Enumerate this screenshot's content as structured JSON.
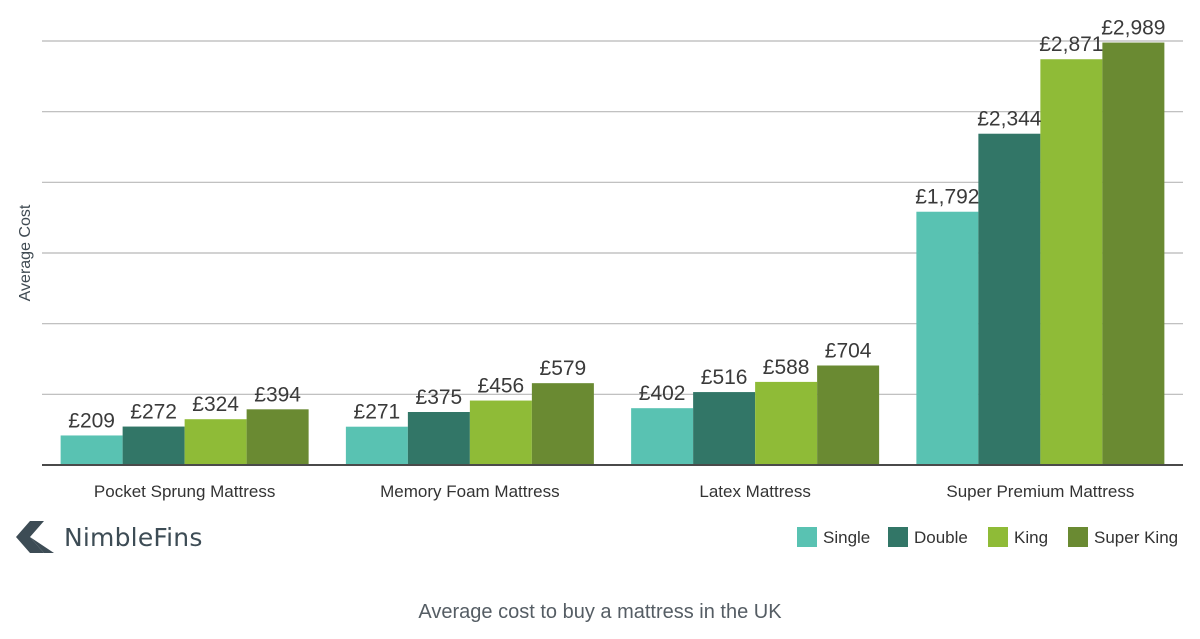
{
  "chart_data": {
    "type": "bar",
    "ylabel": "Average Cost",
    "xlabel": "",
    "ylim": [
      0,
      3000
    ],
    "grid": true,
    "legend_position": "bottom-right",
    "categories": [
      "Pocket Sprung Mattress",
      "Memory Foam Mattress",
      "Latex Mattress",
      "Super Premium Mattress"
    ],
    "series": [
      {
        "name": "Single",
        "color": "#59c2b2",
        "values": [
          209,
          271,
          402,
          1792
        ],
        "labels": [
          "£209",
          "£271",
          "£402",
          "£1,792"
        ]
      },
      {
        "name": "Double",
        "color": "#327667",
        "values": [
          272,
          375,
          516,
          2344
        ],
        "labels": [
          "£272",
          "£375",
          "£516",
          "£2,344"
        ]
      },
      {
        "name": "King",
        "color": "#8fbb37",
        "values": [
          324,
          456,
          588,
          2871
        ],
        "labels": [
          "£324",
          "£456",
          "£588",
          "£2,871"
        ]
      },
      {
        "name": "Super King",
        "color": "#6a8a32",
        "values": [
          394,
          579,
          704,
          2989
        ],
        "labels": [
          "£394",
          "£579",
          "£704",
          "£2,989"
        ]
      }
    ]
  },
  "brand": {
    "name": "NimbleFins",
    "logo_icon": "chevron-arrow-icon",
    "color": "#3d4c55"
  },
  "caption": "Average cost to buy a mattress in the UK"
}
